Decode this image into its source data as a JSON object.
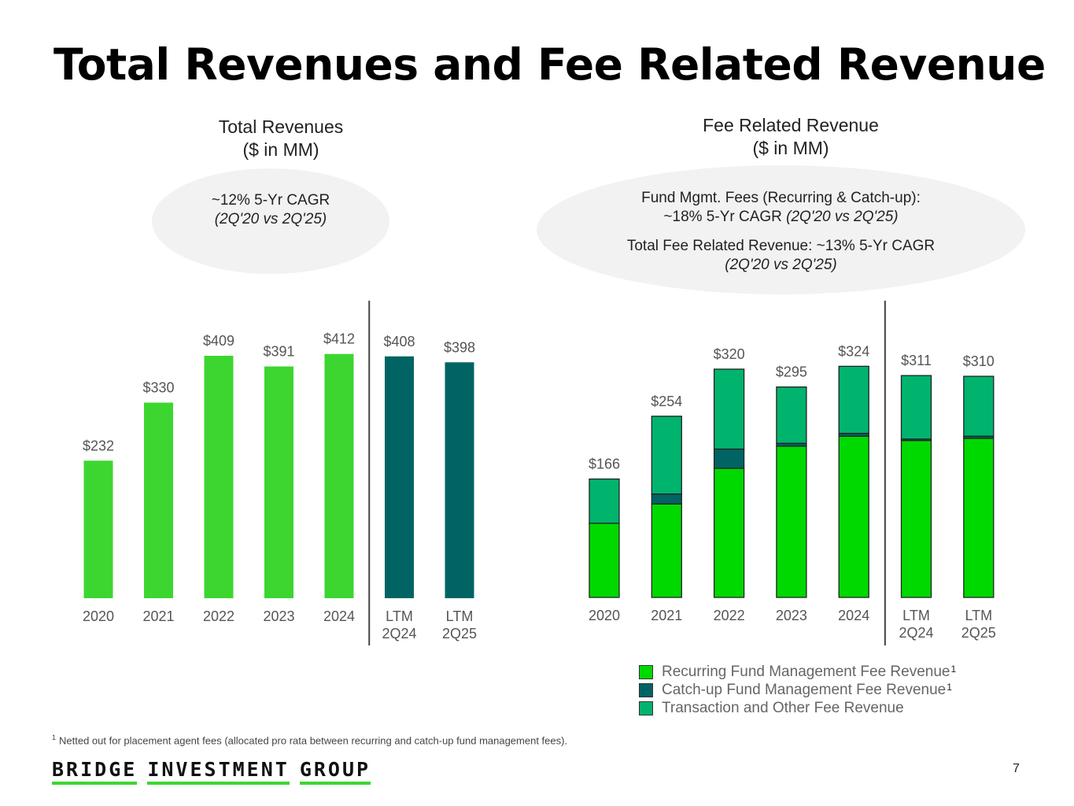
{
  "page_title": "Total Revenues and Fee Related Revenue",
  "left_panel": {
    "title": "Total Revenues",
    "subtitle": "($ in MM)",
    "cagr_line1": "~12% 5-Yr CAGR",
    "cagr_line2": "(2Q'20 vs 2Q'25)"
  },
  "right_panel": {
    "title": "Fee Related Revenue",
    "subtitle": "($ in MM)",
    "note1_line1": "Fund Mgmt. Fees (Recurring & Catch-up):",
    "note1_line2_a": "~18% 5-Yr CAGR ",
    "note1_line2_b": "(2Q'20 vs 2Q'25)",
    "note2_line1": "Total Fee Related Revenue: ~13% 5-Yr CAGR",
    "note2_line2": "(2Q'20 vs 2Q'25)"
  },
  "legend": [
    {
      "label": "Recurring Fund Management Fee Revenue",
      "sup": "1",
      "color": "#00d900"
    },
    {
      "label": "Catch-up Fund Management Fee Revenue",
      "sup": "1",
      "color": "#006464"
    },
    {
      "label": "Transaction and Other Fee Revenue",
      "sup": "",
      "color": "#00b46e"
    }
  ],
  "footnote_sup": "1",
  "footnote": "Netted out for placement agent fees (allocated pro rata between recurring and catch-up fund management fees).",
  "logo": [
    "BRIDGE",
    "INVESTMENT",
    "GROUP"
  ],
  "page_number": "7",
  "colors": {
    "bright_green": "#3dd631",
    "teal": "#006464",
    "recurring": "#00d900",
    "transaction": "#00b46e"
  },
  "chart_data": [
    {
      "type": "bar",
      "title": "Total Revenues ($ in MM)",
      "categories": [
        [
          "2020"
        ],
        [
          "2021"
        ],
        [
          "2022"
        ],
        [
          "2023"
        ],
        [
          "2024"
        ],
        [
          "LTM",
          "2Q24"
        ],
        [
          "LTM",
          "2Q25"
        ]
      ],
      "values": [
        232,
        330,
        409,
        391,
        412,
        408,
        398
      ],
      "labels": [
        "$232",
        "$330",
        "$409",
        "$391",
        "$412",
        "$408",
        "$398"
      ],
      "bar_colors": [
        "#3dd631",
        "#3dd631",
        "#3dd631",
        "#3dd631",
        "#3dd631",
        "#006464",
        "#006464"
      ],
      "ylim": [
        0,
        430
      ],
      "divider_after_index": 4
    },
    {
      "type": "bar",
      "stacked": true,
      "title": "Fee Related Revenue ($ in MM)",
      "categories": [
        [
          "2020"
        ],
        [
          "2021"
        ],
        [
          "2022"
        ],
        [
          "2023"
        ],
        [
          "2024"
        ],
        [
          "LTM",
          "2Q24"
        ],
        [
          "LTM",
          "2Q25"
        ]
      ],
      "totals": [
        166,
        254,
        320,
        295,
        324,
        311,
        310
      ],
      "labels": [
        "$166",
        "$254",
        "$320",
        "$295",
        "$324",
        "$311",
        "$310"
      ],
      "series": [
        {
          "name": "Recurring Fund Management Fee Revenue",
          "color": "#00d900",
          "values": [
            104,
            131,
            181,
            212,
            226,
            220,
            223
          ]
        },
        {
          "name": "Catch-up Fund Management Fee Revenue",
          "color": "#006464",
          "values": [
            0,
            14,
            27,
            4,
            4,
            2,
            3
          ]
        },
        {
          "name": "Transaction and Other Fee Revenue",
          "color": "#00b46e",
          "values": [
            62,
            109,
            112,
            79,
            94,
            89,
            84
          ]
        }
      ],
      "ylim": [
        0,
        340
      ],
      "divider_after_index": 4
    }
  ]
}
